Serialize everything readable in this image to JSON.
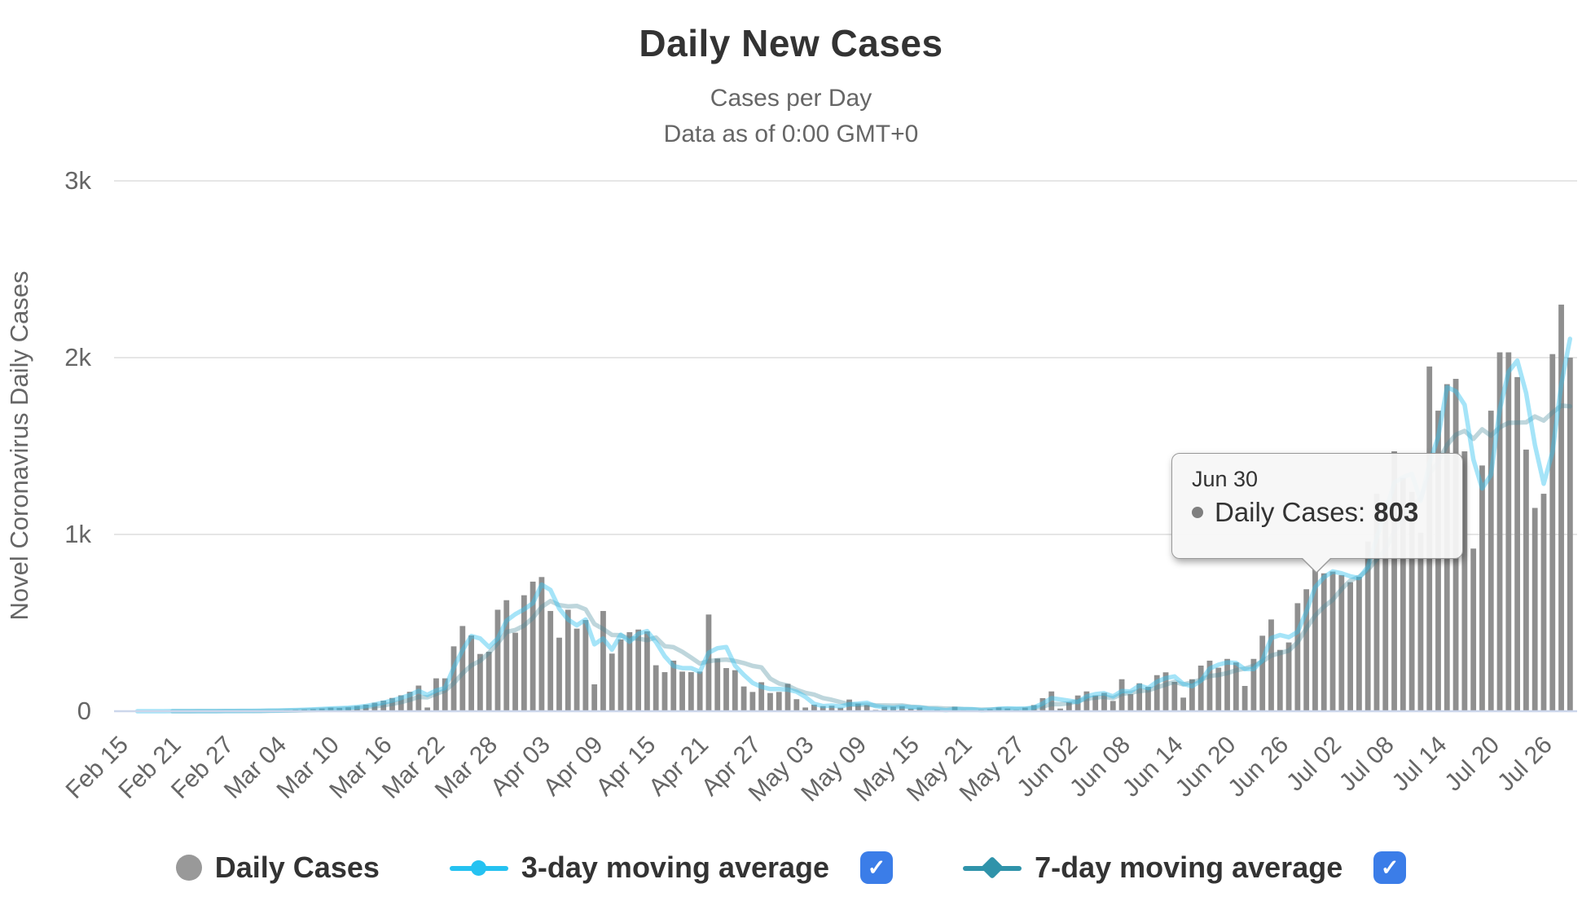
{
  "header": {
    "title": "Daily New Cases",
    "subtitle1": "Cases per Day",
    "subtitle2": "Data as of 0:00 GMT+0"
  },
  "y_axis": {
    "title": "Novel Coronavirus Daily Cases",
    "ticks": [
      {
        "label": "0",
        "value": 0
      },
      {
        "label": "1k",
        "value": 1000
      },
      {
        "label": "2k",
        "value": 2000
      },
      {
        "label": "3k",
        "value": 3000
      }
    ]
  },
  "x_axis": {
    "tick_every": 6,
    "tick_labels": [
      "Feb 15",
      "Feb 21",
      "Feb 27",
      "Mar 04",
      "Mar 10",
      "Mar 16",
      "Mar 22",
      "Mar 28",
      "Apr 03",
      "Apr 09",
      "Apr 15",
      "Apr 21",
      "Apr 27",
      "May 03",
      "May 09",
      "May 15",
      "May 21",
      "May 27",
      "Jun 02",
      "Jun 08",
      "Jun 14",
      "Jun 20",
      "Jun 26",
      "Jul 02",
      "Jul 08",
      "Jul 14",
      "Jul 20",
      "Jul 26"
    ]
  },
  "tooltip": {
    "date": "Jun 30",
    "series_label": "Daily Cases:",
    "value": "803"
  },
  "legend": [
    {
      "label": "Daily Cases",
      "marker": "circle",
      "color": "#999999",
      "checkbox": false
    },
    {
      "label": "3-day moving average",
      "marker": "line-circle",
      "color": "#25c2f1",
      "checkbox": true
    },
    {
      "label": "7-day moving average",
      "marker": "line-diamond",
      "color": "#2f93aa",
      "checkbox": true
    }
  ],
  "colors": {
    "bar": "#8f8f8f",
    "ma3": "#37c3ef",
    "ma7": "#46899c",
    "grid": "#e6e6e6",
    "axis_line": "#ccd6eb",
    "text": "#333333",
    "muted_text": "#666666",
    "checkbox_blue": "#3b7de8"
  },
  "chart_data": {
    "type": "bar",
    "title": "Daily New Cases",
    "xlabel": "",
    "ylabel": "Novel Coronavirus Daily Cases",
    "ylim": [
      0,
      3000
    ],
    "grid": true,
    "legend_position": "bottom",
    "x_start": "Feb 15",
    "x_end": "Jul 29",
    "x_step": "1 day",
    "highlight": {
      "index": 136,
      "date": "Jun 30",
      "series": "Daily Cases",
      "value": 803
    },
    "series": [
      {
        "name": "Daily Cases",
        "type": "bar"
      },
      {
        "name": "3-day moving average",
        "type": "line",
        "period": 3,
        "derived": "moving average of Daily Cases"
      },
      {
        "name": "7-day moving average",
        "type": "line",
        "period": 7,
        "derived": "moving average of Daily Cases"
      }
    ],
    "values": [
      0,
      0,
      0,
      0,
      0,
      0,
      1,
      0,
      0,
      1,
      0,
      1,
      2,
      1,
      2,
      3,
      2,
      4,
      5,
      6,
      8,
      10,
      12,
      15,
      20,
      18,
      22,
      30,
      37,
      48,
      60,
      75,
      90,
      110,
      145,
      21,
      186,
      186,
      367,
      482,
      429,
      324,
      336,
      574,
      628,
      444,
      656,
      733,
      759,
      567,
      416,
      574,
      467,
      516,
      152,
      567,
      326,
      406,
      447,
      462,
      452,
      260,
      221,
      286,
      224,
      221,
      224,
      547,
      298,
      244,
      232,
      140,
      109,
      164,
      103,
      109,
      155,
      68,
      21,
      37,
      29,
      31,
      20,
      66,
      43,
      35,
      8,
      25,
      25,
      28,
      15,
      21,
      5,
      8,
      4,
      25,
      6,
      4,
      8,
      12,
      21,
      15,
      8,
      20,
      35,
      74,
      112,
      15,
      51,
      89,
      112,
      89,
      104,
      58,
      181,
      97,
      158,
      138,
      204,
      220,
      166,
      77,
      181,
      258,
      286,
      246,
      296,
      276,
      143,
      296,
      427,
      519,
      347,
      389,
      611,
      690,
      803,
      780,
      790,
      770,
      730,
      760,
      960,
      1230,
      1180,
      1470,
      1320,
      1240,
      1010,
      1950,
      1700,
      1850,
      1880,
      1470,
      920,
      1390,
      1700,
      2030,
      2030,
      1890,
      1480,
      1150,
      1230,
      2020,
      2300,
      2000
    ]
  }
}
